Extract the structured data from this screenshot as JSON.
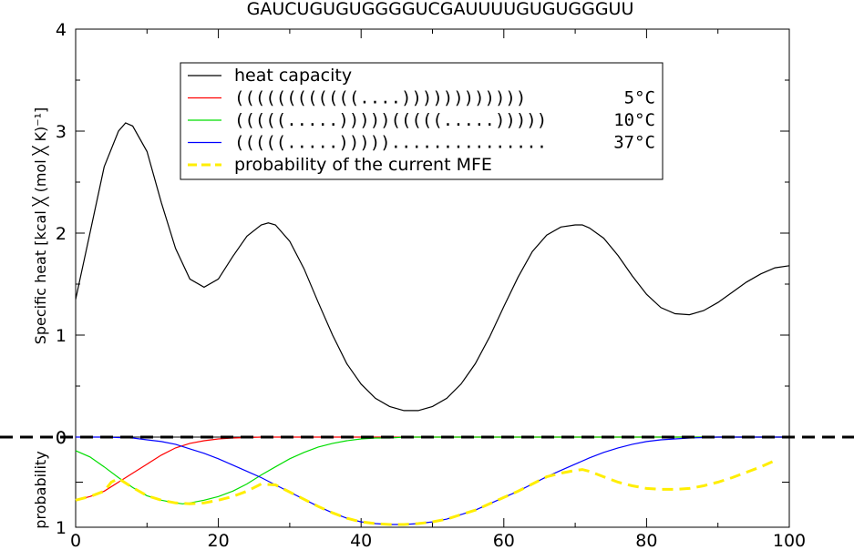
{
  "title": "GAUCUGUGUGGGGUCGAUUUUGUGUGGGUU",
  "chart_data": [
    {
      "type": "line",
      "ylabel": "Specific heat [kcal ╳ (mol ╳ K)⁻¹]",
      "xlim": [
        0,
        100
      ],
      "ylim": [
        0,
        4
      ],
      "yticks": [
        "0",
        "1",
        "2",
        "3",
        "4"
      ],
      "yticks_values": [
        0,
        1,
        2,
        3,
        4
      ],
      "series": [
        {
          "name": "heat capacity",
          "color": "#000000",
          "x": [
            0,
            2,
            4,
            6,
            7,
            8,
            10,
            12,
            14,
            16,
            18,
            20,
            22,
            24,
            26,
            27,
            28,
            30,
            32,
            34,
            36,
            38,
            40,
            42,
            44,
            46,
            48,
            50,
            52,
            54,
            56,
            58,
            60,
            62,
            64,
            66,
            68,
            70,
            71,
            72,
            74,
            76,
            78,
            80,
            82,
            84,
            86,
            88,
            90,
            92,
            94,
            96,
            98,
            100
          ],
          "values": [
            1.35,
            2.0,
            2.65,
            3.0,
            3.08,
            3.05,
            2.8,
            2.3,
            1.85,
            1.55,
            1.47,
            1.55,
            1.77,
            1.97,
            2.08,
            2.1,
            2.08,
            1.92,
            1.65,
            1.32,
            1.0,
            0.72,
            0.52,
            0.38,
            0.3,
            0.26,
            0.26,
            0.3,
            0.38,
            0.52,
            0.72,
            0.98,
            1.28,
            1.57,
            1.82,
            1.98,
            2.06,
            2.08,
            2.08,
            2.05,
            1.95,
            1.78,
            1.58,
            1.4,
            1.27,
            1.21,
            1.2,
            1.24,
            1.32,
            1.42,
            1.52,
            1.6,
            1.66,
            1.68
          ]
        }
      ],
      "legend": {
        "placement": "top-center",
        "entries": [
          {
            "label": "heat capacity",
            "structure": "",
            "temp": "",
            "color": "#000000",
            "style": "solid"
          },
          {
            "label": "",
            "structure": "((((((((((((....))))))))))))",
            "temp": "5°C",
            "color": "#ff0000",
            "style": "solid"
          },
          {
            "label": "",
            "structure": "(((((.....)))))(((((.....)))))",
            "temp": "10°C",
            "color": "#00dd00",
            "style": "solid"
          },
          {
            "label": "",
            "structure": "(((((.....)))))...............",
            "temp": "37°C",
            "color": "#0000ff",
            "style": "solid"
          },
          {
            "label": "probability of the current MFE",
            "structure": "",
            "temp": "",
            "color": "#ffee00",
            "style": "dashed"
          }
        ]
      }
    },
    {
      "type": "line",
      "ylabel": "probability",
      "xlim": [
        0,
        100
      ],
      "ylim": [
        1,
        0
      ],
      "xticks": [
        "0",
        "20",
        "40",
        "60",
        "80",
        "100"
      ],
      "xticks_values": [
        0,
        20,
        40,
        60,
        80,
        100
      ],
      "yticks": [
        "0",
        "1"
      ],
      "yticks_values": [
        0,
        1
      ],
      "series": [
        {
          "color": "#ff0000",
          "x": [
            0,
            2,
            4,
            6,
            8,
            10,
            12,
            14,
            16,
            18,
            20,
            22,
            24,
            26,
            28,
            30,
            40,
            50,
            60,
            70,
            80,
            90,
            100
          ],
          "values": [
            0.7,
            0.66,
            0.6,
            0.5,
            0.4,
            0.3,
            0.2,
            0.12,
            0.07,
            0.04,
            0.02,
            0.01,
            0.005,
            0.0,
            0.0,
            0.0,
            0.0,
            0.0,
            0.0,
            0.0,
            0.0,
            0.0,
            0.0
          ]
        },
        {
          "color": "#00dd00",
          "x": [
            0,
            2,
            4,
            6,
            8,
            10,
            12,
            14,
            15,
            16,
            18,
            20,
            22,
            24,
            26,
            28,
            30,
            32,
            34,
            36,
            38,
            40,
            42,
            44,
            46,
            50,
            60,
            70,
            80,
            90,
            100
          ],
          "values": [
            0.15,
            0.22,
            0.33,
            0.45,
            0.56,
            0.65,
            0.7,
            0.73,
            0.74,
            0.73,
            0.7,
            0.66,
            0.6,
            0.52,
            0.42,
            0.33,
            0.24,
            0.17,
            0.11,
            0.07,
            0.04,
            0.02,
            0.01,
            0.01,
            0.0,
            0.0,
            0.0,
            0.0,
            0.0,
            0.0,
            0.0
          ]
        },
        {
          "color": "#0000ff",
          "x": [
            0,
            4,
            8,
            10,
            12,
            14,
            16,
            18,
            20,
            22,
            24,
            26,
            28,
            30,
            32,
            34,
            36,
            38,
            40,
            42,
            44,
            46,
            48,
            50,
            52,
            54,
            56,
            58,
            60,
            62,
            64,
            66,
            68,
            70,
            72,
            74,
            76,
            78,
            80,
            82,
            84,
            86,
            88,
            90,
            92,
            96,
            100
          ],
          "values": [
            0.0,
            0.0,
            0.01,
            0.03,
            0.05,
            0.08,
            0.13,
            0.18,
            0.24,
            0.31,
            0.38,
            0.45,
            0.53,
            0.61,
            0.69,
            0.77,
            0.84,
            0.9,
            0.94,
            0.96,
            0.97,
            0.97,
            0.96,
            0.94,
            0.91,
            0.86,
            0.81,
            0.74,
            0.67,
            0.6,
            0.52,
            0.44,
            0.37,
            0.3,
            0.23,
            0.17,
            0.12,
            0.08,
            0.05,
            0.03,
            0.02,
            0.01,
            0.005,
            0.0,
            0.0,
            0.0,
            0.0
          ]
        },
        {
          "color": "#ffee00",
          "dashed": true,
          "x": [
            0,
            2,
            4,
            5,
            6,
            8,
            10,
            12,
            14,
            16,
            18,
            20,
            22,
            24,
            26,
            28,
            30,
            32,
            34,
            36,
            38,
            40,
            42,
            44,
            46,
            48,
            50,
            52,
            54,
            56,
            58,
            60,
            62,
            64,
            66,
            68,
            70,
            71,
            72,
            74,
            76,
            78,
            80,
            82,
            84,
            86,
            88,
            90,
            92,
            94,
            96,
            98
          ],
          "values": [
            0.7,
            0.66,
            0.6,
            0.5,
            0.46,
            0.56,
            0.65,
            0.7,
            0.73,
            0.74,
            0.73,
            0.7,
            0.66,
            0.6,
            0.52,
            0.53,
            0.61,
            0.69,
            0.77,
            0.84,
            0.9,
            0.94,
            0.96,
            0.97,
            0.97,
            0.96,
            0.94,
            0.91,
            0.86,
            0.81,
            0.74,
            0.67,
            0.6,
            0.52,
            0.44,
            0.4,
            0.37,
            0.36,
            0.38,
            0.44,
            0.5,
            0.54,
            0.57,
            0.58,
            0.58,
            0.57,
            0.54,
            0.5,
            0.45,
            0.39,
            0.33,
            0.26
          ]
        }
      ]
    }
  ]
}
